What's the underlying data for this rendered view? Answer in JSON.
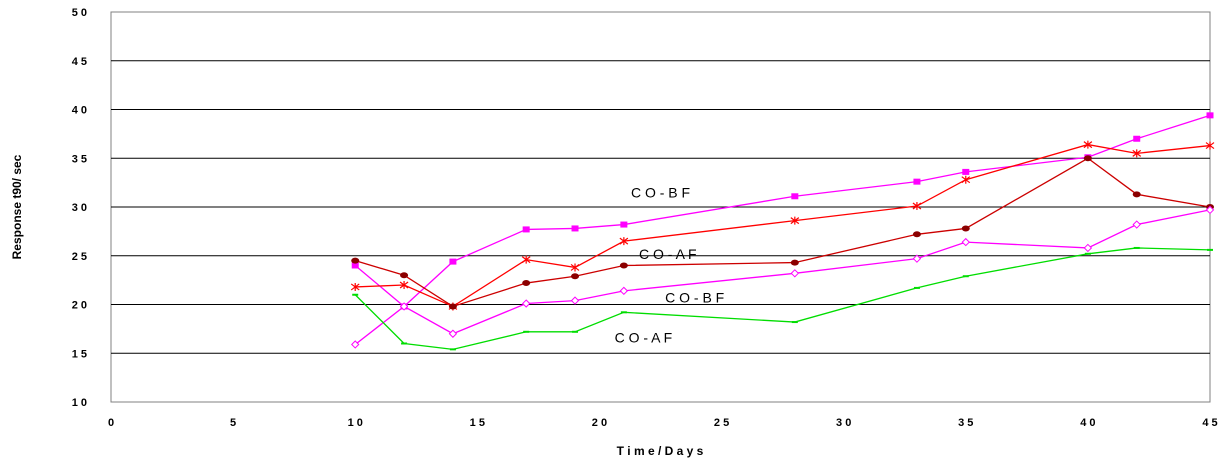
{
  "chart_data": {
    "type": "line",
    "xlabel": "T i m e / D a y s",
    "ylabel": "Response t90/ sec",
    "xlim": [
      0,
      45
    ],
    "ylim": [
      10,
      50
    ],
    "xticks": [
      0,
      5,
      10,
      15,
      20,
      25,
      30,
      35,
      40,
      45
    ],
    "yticks": [
      10,
      15,
      20,
      25,
      30,
      35,
      40,
      45,
      50
    ],
    "xtick_labels": [
      "0",
      "5",
      "1 0",
      "1 5",
      "2 0",
      "2 5",
      "3 0",
      "3 5",
      "4 0",
      "4 5"
    ],
    "ytick_labels": [
      "1 0",
      "1 5",
      "2 0",
      "2 5",
      "3 0",
      "3 5",
      "4 0",
      "4 5",
      "5 0"
    ],
    "grid": "horizontal",
    "series": [
      {
        "color": "#ff00ff",
        "marker": "square",
        "x": [
          10,
          12,
          14,
          17,
          19,
          21,
          28,
          33,
          35,
          40,
          42,
          45
        ],
        "y": [
          24,
          19.8,
          24.4,
          27.7,
          27.8,
          28.2,
          31.1,
          32.6,
          33.6,
          35.1,
          37,
          39.4
        ]
      },
      {
        "color": "#ff0000",
        "marker": "star",
        "x": [
          10,
          12,
          14,
          17,
          19,
          21,
          28,
          33,
          35,
          40,
          42,
          45
        ],
        "y": [
          21.8,
          22,
          19.8,
          24.6,
          23.8,
          26.5,
          28.6,
          30.1,
          32.8,
          36.4,
          35.5,
          36.3
        ]
      },
      {
        "color": "#cc0000",
        "marker": "circle",
        "x": [
          10,
          12,
          14,
          17,
          19,
          21,
          28,
          33,
          35,
          40,
          42,
          45
        ],
        "y": [
          24.5,
          23,
          19.8,
          22.2,
          22.9,
          24,
          24.3,
          27.2,
          27.8,
          35,
          31.3,
          30
        ]
      },
      {
        "color": "#ff00ff",
        "marker": "diamond",
        "x": [
          10,
          12,
          14,
          17,
          19,
          21,
          28,
          33,
          35,
          40,
          42,
          45
        ],
        "y": [
          15.9,
          19.8,
          17,
          20.1,
          20.4,
          21.4,
          23.2,
          24.7,
          26.4,
          25.8,
          28.2,
          29.7
        ]
      },
      {
        "color": "#00dd00",
        "marker": "dash",
        "x": [
          10,
          12,
          14,
          17,
          19,
          21,
          28,
          33,
          35,
          40,
          42,
          45
        ],
        "y": [
          21,
          16,
          15.4,
          17.2,
          17.2,
          19.2,
          18.2,
          21.7,
          22.9,
          25.2,
          25.8,
          25.6
        ]
      }
    ],
    "annotations": [
      {
        "text": "C O - B F",
        "x": 22.5,
        "y": 31.5
      },
      {
        "text": "C O - A F",
        "x": 22.8,
        "y": 25.2
      },
      {
        "text": "C O - B F",
        "x": 23.9,
        "y": 20.7
      },
      {
        "text": "C O - A F",
        "x": 21.8,
        "y": 16.6
      }
    ]
  }
}
